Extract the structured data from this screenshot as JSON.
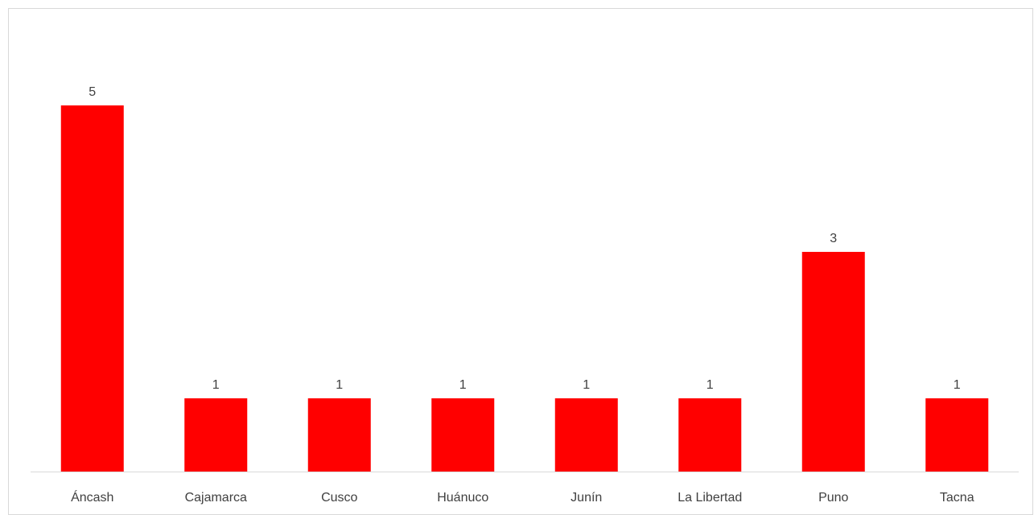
{
  "chart_data": {
    "type": "bar",
    "title": "",
    "xlabel": "",
    "ylabel": "",
    "categories": [
      "Áncash",
      "Cajamarca",
      "Cusco",
      "Huánuco",
      "Junín",
      "La Libertad",
      "Puno",
      "Tacna"
    ],
    "values": [
      5,
      1,
      1,
      1,
      1,
      1,
      3,
      1
    ],
    "ylim": [
      0,
      5
    ],
    "grid": false,
    "legend": "none",
    "data_labels": true,
    "bar_color": "#ff0000",
    "axis_color": "#d9d9d9",
    "text_color": "#404040"
  }
}
